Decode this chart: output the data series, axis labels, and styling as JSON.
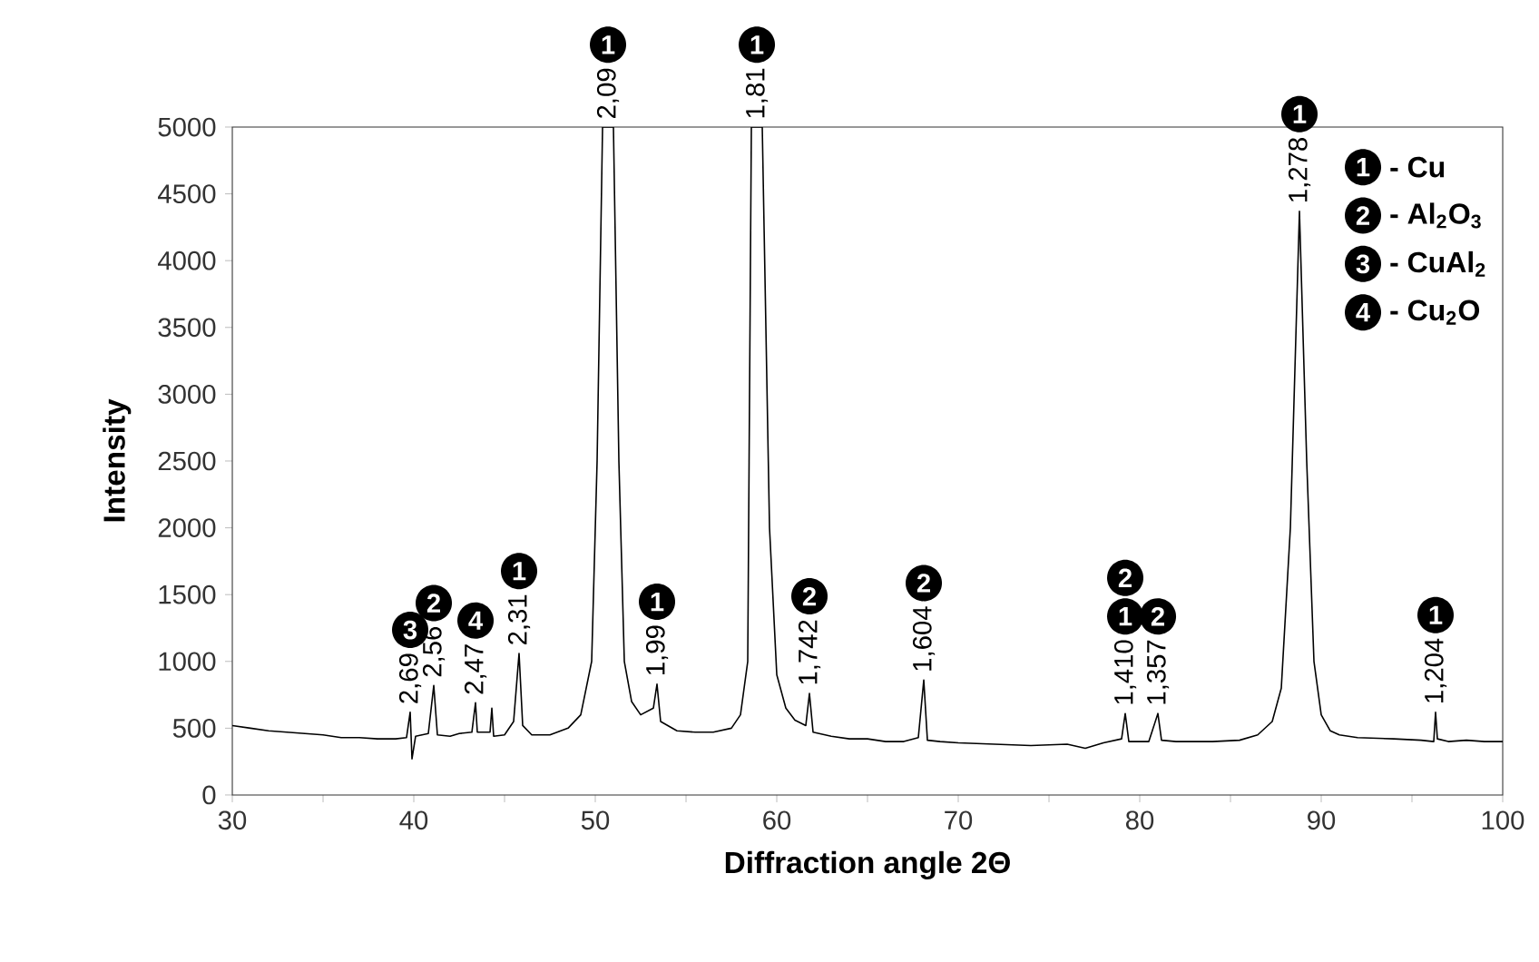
{
  "chart_data": {
    "type": "line",
    "xlabel": "Diffraction angle 2Θ",
    "ylabel": "Intensity",
    "color": "#000000",
    "x": [
      30,
      31,
      32,
      33,
      34,
      35,
      36,
      37,
      38,
      39,
      39.6,
      39.8,
      39.9,
      40.1,
      40.8,
      41.1,
      41.3,
      42,
      42.5,
      43.2,
      43.4,
      43.5,
      44.2,
      44.3,
      44.4,
      45,
      45.5,
      45.8,
      46.0,
      46.5,
      47.5,
      48.5,
      49.2,
      49.8,
      50.1,
      50.4,
      51.0,
      51.3,
      51.6,
      52.0,
      52.5,
      53.2,
      53.4,
      53.6,
      54.5,
      55.5,
      56.5,
      57.5,
      58.0,
      58.4,
      58.6,
      59.2,
      59.6,
      60.0,
      60.5,
      61.0,
      61.6,
      61.8,
      62.0,
      63,
      64,
      65,
      66,
      67,
      67.8,
      68.1,
      68.3,
      69,
      70,
      72,
      74,
      76,
      77,
      78,
      79.0,
      79.2,
      79.4,
      80.5,
      81.0,
      81.2,
      82,
      84,
      85.5,
      86.5,
      87.3,
      87.8,
      88.3,
      88.8,
      89.2,
      89.6,
      90,
      90.5,
      91,
      92,
      94,
      95.5,
      96.2,
      96.3,
      96.4,
      97,
      98,
      99,
      100
    ],
    "values": [
      520,
      500,
      480,
      470,
      460,
      450,
      430,
      430,
      420,
      420,
      430,
      620,
      270,
      440,
      460,
      820,
      450,
      440,
      460,
      470,
      690,
      470,
      470,
      650,
      440,
      450,
      550,
      1060,
      520,
      450,
      450,
      500,
      600,
      1000,
      2500,
      5000,
      5000,
      2500,
      1000,
      700,
      600,
      650,
      830,
      550,
      480,
      470,
      470,
      500,
      600,
      1000,
      5000,
      5000,
      2000,
      900,
      650,
      560,
      520,
      760,
      470,
      440,
      420,
      420,
      400,
      400,
      430,
      860,
      410,
      400,
      390,
      380,
      370,
      380,
      350,
      390,
      420,
      610,
      400,
      400,
      610,
      410,
      400,
      400,
      410,
      450,
      550,
      800,
      2000,
      4370,
      2500,
      1000,
      600,
      480,
      450,
      430,
      420,
      410,
      400,
      620,
      420,
      400,
      410,
      400,
      400
    ],
    "xlim": [
      30,
      100
    ],
    "ylim": [
      0,
      5000
    ],
    "xticks": [
      30,
      {
        "value": 35,
        "label": null
      },
      40,
      {
        "value": 45,
        "label": null
      },
      50,
      {
        "value": 55,
        "label": null
      },
      60,
      {
        "value": 65,
        "label": null
      },
      70,
      {
        "value": 75,
        "label": null
      },
      80,
      {
        "value": 85,
        "label": null
      },
      90,
      {
        "value": 95,
        "label": null
      },
      100
    ],
    "yticks": [
      0,
      500,
      1000,
      1500,
      2000,
      2500,
      3000,
      3500,
      4000,
      4500,
      5000
    ],
    "annotations": [
      "1",
      "- Cu",
      "2",
      "- Al$_{2}$O$_{3}$",
      "3",
      "- CuAl$_{2}$",
      "4",
      "- Cu$_{2}$O",
      {
        "text": "2,69",
        "x": 39.8,
        "y": 620
      },
      "3",
      {
        "text": "2,56",
        "x": 41.1,
        "y": 820
      },
      "2",
      {
        "text": "2,47",
        "x": 43.4,
        "y": 690
      },
      "4",
      {
        "text": "2,31",
        "x": 45.8,
        "y": 1060
      },
      "1",
      {
        "text": "2,09",
        "x": 50.7,
        "y": 5000
      },
      "1",
      {
        "text": "1,99",
        "x": 53.4,
        "y": 830
      },
      "1",
      {
        "text": "1,81",
        "x": 58.9,
        "y": 5000
      },
      "1",
      {
        "text": "1,742",
        "x": 61.8,
        "y": 760
      },
      "2",
      {
        "text": "1,604",
        "x": 68.1,
        "y": 860
      },
      "2",
      {
        "text": "1,410",
        "x": 79.2,
        "y": 610
      },
      "1",
      "2",
      {
        "text": "1,357",
        "x": 81.0,
        "y": 610
      },
      "2",
      {
        "text": "1,278",
        "x": 88.8,
        "y": 4370
      },
      "1",
      {
        "text": "1,204",
        "x": 96.3,
        "y": 620
      },
      "1"
    ]
  }
}
